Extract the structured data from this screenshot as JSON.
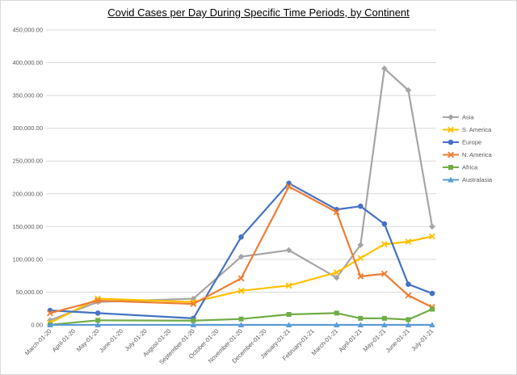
{
  "chart_data": {
    "type": "line",
    "title": "Covid Cases per Day During Specific Time Periods, by Continent",
    "xlabel": "",
    "ylabel": "",
    "ylim": [
      0,
      450000
    ],
    "yticks": [
      "0.00",
      "50,000.00",
      "100,000.00",
      "150,000.00",
      "200,000.00",
      "250,000.00",
      "300,000.00",
      "350,000.00",
      "400,000.00",
      "450,000.00"
    ],
    "categories": [
      "March-01-20",
      "April-01-20",
      "May-01-20",
      "June-01-20",
      "July-01-20",
      "August-01-20",
      "September-01-20",
      "October-01-20",
      "November-01-20",
      "December-01-20",
      "January-01-21",
      "February-01-21",
      "March-01-21",
      "April-01-21",
      "May-01-21",
      "June-01-21",
      "July-01-21"
    ],
    "legend_position": "right",
    "grid": true,
    "series": [
      {
        "name": "Asia",
        "color": "#a5a5a5",
        "marker": "diamond",
        "x": [
          0,
          2,
          6,
          8,
          10,
          12,
          13,
          14,
          15,
          16
        ],
        "values": [
          7000,
          35000,
          40000,
          104000,
          114000,
          72000,
          122000,
          391000,
          358000,
          150000
        ]
      },
      {
        "name": "S. America",
        "color": "#ffc000",
        "marker": "x",
        "x": [
          0,
          2,
          6,
          8,
          10,
          12,
          13,
          14,
          15,
          16
        ],
        "values": [
          3000,
          40000,
          35000,
          52000,
          60000,
          80000,
          102000,
          123000,
          127000,
          135000
        ]
      },
      {
        "name": "Europe",
        "color": "#4472c4",
        "marker": "circle",
        "x": [
          0,
          2,
          6,
          8,
          10,
          12,
          13,
          14,
          15,
          16
        ],
        "values": [
          22000,
          18000,
          10000,
          134000,
          216000,
          176000,
          181000,
          154000,
          62000,
          48000
        ]
      },
      {
        "name": "N. America",
        "color": "#ed7d31",
        "marker": "x",
        "x": [
          0,
          2,
          6,
          8,
          10,
          12,
          13,
          14,
          15,
          16
        ],
        "values": [
          18000,
          37000,
          32000,
          71000,
          211000,
          172000,
          74000,
          78000,
          45000,
          27000
        ]
      },
      {
        "name": "Africa",
        "color": "#70ad47",
        "marker": "square",
        "x": [
          0,
          2,
          6,
          8,
          10,
          12,
          13,
          14,
          15,
          16
        ],
        "values": [
          200,
          7000,
          6500,
          9000,
          16000,
          18000,
          10000,
          10000,
          8000,
          24000
        ]
      },
      {
        "name": "Australasia",
        "color": "#5b9bd5",
        "marker": "triangle",
        "x": [
          0,
          2,
          6,
          8,
          10,
          12,
          13,
          14,
          15,
          16
        ],
        "values": [
          0,
          0,
          0,
          0,
          0,
          0,
          0,
          0,
          0,
          0
        ]
      }
    ]
  }
}
